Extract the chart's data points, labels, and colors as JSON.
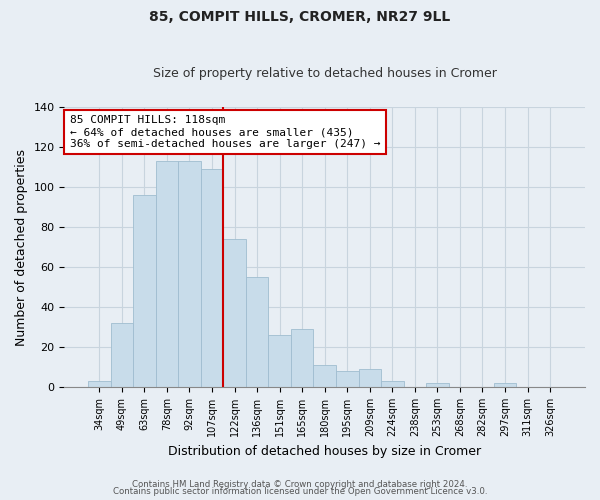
{
  "title": "85, COMPIT HILLS, CROMER, NR27 9LL",
  "subtitle": "Size of property relative to detached houses in Cromer",
  "xlabel": "Distribution of detached houses by size in Cromer",
  "ylabel": "Number of detached properties",
  "bar_labels": [
    "34sqm",
    "49sqm",
    "63sqm",
    "78sqm",
    "92sqm",
    "107sqm",
    "122sqm",
    "136sqm",
    "151sqm",
    "165sqm",
    "180sqm",
    "195sqm",
    "209sqm",
    "224sqm",
    "238sqm",
    "253sqm",
    "268sqm",
    "282sqm",
    "297sqm",
    "311sqm",
    "326sqm"
  ],
  "bar_values": [
    3,
    32,
    96,
    113,
    113,
    109,
    74,
    55,
    26,
    29,
    11,
    8,
    9,
    3,
    0,
    2,
    0,
    0,
    2,
    0,
    0
  ],
  "bar_color": "#c8dcea",
  "bar_edge_color": "#a0bdd0",
  "vline_color": "#cc0000",
  "vline_x_index": 6,
  "ylim": [
    0,
    140
  ],
  "annotation_title": "85 COMPIT HILLS: 118sqm",
  "annotation_line1": "← 64% of detached houses are smaller (435)",
  "annotation_line2": "36% of semi-detached houses are larger (247) →",
  "annotation_box_facecolor": "#ffffff",
  "annotation_box_edgecolor": "#cc0000",
  "footer1": "Contains HM Land Registry data © Crown copyright and database right 2024.",
  "footer2": "Contains public sector information licensed under the Open Government Licence v3.0.",
  "figure_facecolor": "#e8eef4",
  "axes_facecolor": "#e8eef4",
  "grid_color": "#c8d4de",
  "title_fontsize": 10,
  "subtitle_fontsize": 9
}
